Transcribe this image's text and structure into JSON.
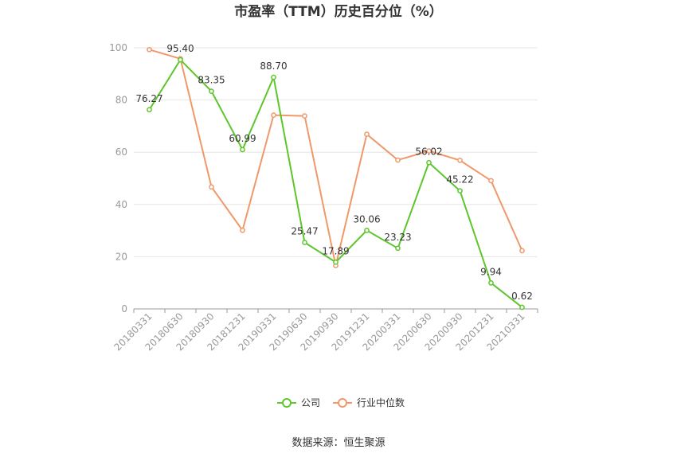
{
  "chart_data": {
    "type": "line",
    "title": "市盈率（TTM）历史百分位（%）",
    "categories": [
      "20180331",
      "20180630",
      "20180930",
      "20181231",
      "20190331",
      "20190630",
      "20190930",
      "20191231",
      "20200331",
      "20200630",
      "20200930",
      "20201231",
      "20210331"
    ],
    "series": [
      {
        "name": "公司",
        "color": "#5dc62b",
        "values": [
          76.27,
          95.4,
          83.35,
          60.99,
          88.7,
          25.47,
          17.89,
          30.06,
          23.23,
          56.02,
          45.22,
          9.94,
          0.62
        ],
        "labels": [
          "76.27",
          "95.40",
          "83.35",
          "60.99",
          "88.70",
          "25.47",
          "17.89",
          "30.06",
          "23.23",
          "56.02",
          "45.22",
          "9.94",
          "0.62"
        ]
      },
      {
        "name": "行业中位数",
        "color": "#f0986a",
        "values": [
          99.3,
          95.8,
          46.7,
          30.1,
          74.2,
          73.9,
          16.6,
          66.9,
          57.0,
          60.5,
          56.9,
          49.1,
          22.3
        ]
      }
    ],
    "yticks": [
      "0",
      "20",
      "40",
      "60",
      "80",
      "100"
    ],
    "ylim": [
      0,
      100
    ],
    "grid": true,
    "legend": "bottom-center"
  },
  "source_text": "数据来源：恒生聚源"
}
